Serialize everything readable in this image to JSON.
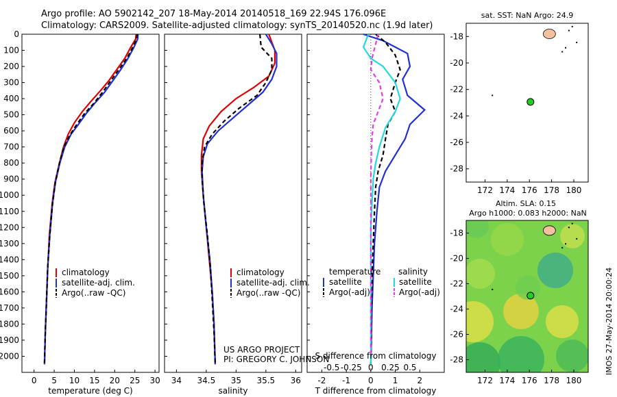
{
  "header": {
    "line1": "Argo profile: AO 5902142_207 18-May-2014 20140518_169 22.94S 176.096E",
    "line2": "Climatology: CARS2009. Satellite-adjusted climatology: synTS_20140520.nc (1.9d later)"
  },
  "credit": {
    "line1": "US ARGO PROJECT",
    "line2": "PI: GREGORY C. JOHNSON"
  },
  "imos_stamp": "IMOS 27-May-2014 20:00:24",
  "colors": {
    "climatology": "#dd0000",
    "satellite": "#1f2fd0",
    "argo": "#000000",
    "sat_salinity": "#22d8e0",
    "argo_salinity": "#e040e0",
    "float_marker": "#22cc22",
    "land": "#f4c0a0"
  },
  "chart_data": [
    {
      "type": "line",
      "id": "temperature",
      "xlabel": "temperature (deg C)",
      "xlim": [
        -3,
        31
      ],
      "ylim": [
        2100,
        0
      ],
      "xticks": [
        0,
        5,
        10,
        15,
        20,
        25,
        30
      ],
      "yticks": [
        0,
        100,
        200,
        300,
        400,
        500,
        600,
        700,
        800,
        900,
        1000,
        1100,
        1200,
        1300,
        1400,
        1500,
        1600,
        1700,
        1800,
        1900,
        2000
      ],
      "legend": [
        "climatology",
        "satellite-adj. clim.",
        "Argo(..raw -QC)"
      ],
      "series": [
        {
          "name": "climatology",
          "color": "#dd0000",
          "points": [
            [
              25.3,
              0
            ],
            [
              25.2,
              30
            ],
            [
              24.0,
              80
            ],
            [
              22.5,
              150
            ],
            [
              20.5,
              220
            ],
            [
              18.5,
              290
            ],
            [
              16.5,
              350
            ],
            [
              14.0,
              420
            ],
            [
              12.0,
              480
            ],
            [
              10.0,
              550
            ],
            [
              8.5,
              620
            ],
            [
              7.3,
              700
            ],
            [
              6.3,
              800
            ],
            [
              5.2,
              920
            ],
            [
              4.5,
              1050
            ],
            [
              3.8,
              1250
            ],
            [
              3.4,
              1450
            ],
            [
              3.1,
              1650
            ],
            [
              2.8,
              1850
            ],
            [
              2.6,
              2050
            ]
          ]
        },
        {
          "name": "satellite-adj. clim.",
          "color": "#1f2fd0",
          "points": [
            [
              25.8,
              0
            ],
            [
              25.7,
              30
            ],
            [
              24.8,
              80
            ],
            [
              23.3,
              150
            ],
            [
              21.5,
              220
            ],
            [
              19.5,
              290
            ],
            [
              17.5,
              360
            ],
            [
              15.0,
              430
            ],
            [
              13.0,
              490
            ],
            [
              11.0,
              560
            ],
            [
              9.2,
              620
            ],
            [
              7.6,
              700
            ],
            [
              6.4,
              800
            ],
            [
              5.3,
              920
            ],
            [
              4.6,
              1050
            ],
            [
              3.9,
              1250
            ],
            [
              3.4,
              1450
            ],
            [
              3.1,
              1650
            ],
            [
              2.8,
              1850
            ],
            [
              2.6,
              2050
            ]
          ]
        },
        {
          "name": "Argo(..raw -QC)",
          "color": "#000000",
          "dashed": true,
          "points": [
            [
              25.6,
              0
            ],
            [
              25.4,
              30
            ],
            [
              24.5,
              80
            ],
            [
              23.0,
              150
            ],
            [
              21.0,
              220
            ],
            [
              19.0,
              290
            ],
            [
              17.0,
              360
            ],
            [
              14.8,
              430
            ],
            [
              12.6,
              490
            ],
            [
              10.6,
              560
            ],
            [
              8.8,
              630
            ],
            [
              7.4,
              700
            ],
            [
              6.3,
              800
            ],
            [
              5.3,
              920
            ],
            [
              4.6,
              1050
            ],
            [
              3.9,
              1250
            ],
            [
              3.4,
              1450
            ],
            [
              3.1,
              1650
            ],
            [
              2.8,
              1850
            ],
            [
              2.6,
              2040
            ]
          ]
        }
      ]
    },
    {
      "type": "line",
      "id": "salinity",
      "xlabel": "salinity",
      "xlim": [
        33.8,
        36.1
      ],
      "ylim": [
        2100,
        0
      ],
      "xticks": [
        34,
        34.5,
        35,
        35.5,
        36
      ],
      "legend": [
        "climatology",
        "satellite-adj. clim.",
        "Argo(..raw -QC)"
      ],
      "series": [
        {
          "name": "climatology",
          "color": "#dd0000",
          "points": [
            [
              35.55,
              0
            ],
            [
              35.6,
              50
            ],
            [
              35.65,
              100
            ],
            [
              35.65,
              180
            ],
            [
              35.55,
              260
            ],
            [
              35.3,
              330
            ],
            [
              35.0,
              400
            ],
            [
              34.75,
              480
            ],
            [
              34.55,
              570
            ],
            [
              34.45,
              650
            ],
            [
              34.42,
              750
            ],
            [
              34.42,
              850
            ],
            [
              34.45,
              1000
            ],
            [
              34.5,
              1200
            ],
            [
              34.55,
              1400
            ],
            [
              34.6,
              1600
            ],
            [
              34.63,
              1800
            ],
            [
              34.65,
              2050
            ]
          ]
        },
        {
          "name": "satellite-adj. clim.",
          "color": "#1f2fd0",
          "points": [
            [
              35.5,
              0
            ],
            [
              35.6,
              60
            ],
            [
              35.68,
              120
            ],
            [
              35.68,
              200
            ],
            [
              35.6,
              280
            ],
            [
              35.45,
              360
            ],
            [
              35.2,
              440
            ],
            [
              34.95,
              520
            ],
            [
              34.7,
              600
            ],
            [
              34.52,
              680
            ],
            [
              34.45,
              760
            ],
            [
              34.43,
              850
            ],
            [
              34.45,
              1000
            ],
            [
              34.5,
              1200
            ],
            [
              34.56,
              1400
            ],
            [
              34.6,
              1600
            ],
            [
              34.63,
              1800
            ],
            [
              34.65,
              2050
            ]
          ]
        },
        {
          "name": "Argo(..raw -QC)",
          "color": "#000000",
          "dashed": true,
          "points": [
            [
              35.4,
              0
            ],
            [
              35.42,
              80
            ],
            [
              35.6,
              150
            ],
            [
              35.6,
              220
            ],
            [
              35.5,
              300
            ],
            [
              35.35,
              380
            ],
            [
              35.05,
              460
            ],
            [
              34.8,
              540
            ],
            [
              34.6,
              620
            ],
            [
              34.47,
              700
            ],
            [
              34.43,
              800
            ],
            [
              34.43,
              900
            ],
            [
              34.46,
              1050
            ],
            [
              34.52,
              1250
            ],
            [
              34.57,
              1450
            ],
            [
              34.6,
              1650
            ],
            [
              34.63,
              1850
            ],
            [
              34.65,
              2040
            ]
          ]
        }
      ]
    },
    {
      "type": "line",
      "id": "differences",
      "xlabel": "T difference from climatology",
      "xlabel_top": "S difference from climatology",
      "xlim": [
        -2.6,
        3.0
      ],
      "ylim": [
        2100,
        0
      ],
      "xticks_T": [
        -2,
        -1,
        0,
        1,
        2
      ],
      "xticks_S": [
        -0.5,
        -0.25,
        0,
        0.25,
        0.5
      ],
      "xticks_S_labels": [
        "-0.5",
        "-0.25",
        "0",
        "0.25",
        "0.5"
      ],
      "legend_temperature_title": "temperature",
      "legend_salinity_title": "salinity",
      "legend_items": [
        "satellite",
        "Argo(-adj)",
        "satellite",
        "Argo(-adj)"
      ],
      "series": [
        {
          "name": "satellite",
          "color": "#1f2fd0",
          "points": [
            [
              -0.3,
              0
            ],
            [
              0.5,
              40
            ],
            [
              1.5,
              120
            ],
            [
              1.6,
              200
            ],
            [
              1.3,
              280
            ],
            [
              1.5,
              380
            ],
            [
              2.2,
              470
            ],
            [
              1.6,
              560
            ],
            [
              1.4,
              650
            ],
            [
              1.0,
              750
            ],
            [
              0.6,
              850
            ],
            [
              0.35,
              950
            ],
            [
              0.25,
              1100
            ],
            [
              0.15,
              1300
            ],
            [
              0.1,
              1500
            ],
            [
              0.05,
              1700
            ],
            [
              0.02,
              1900
            ],
            [
              0.0,
              2050
            ]
          ]
        },
        {
          "name": "Argo(-adj)",
          "color": "#000000",
          "dashed": true,
          "points": [
            [
              0.2,
              0
            ],
            [
              0.6,
              50
            ],
            [
              1.0,
              130
            ],
            [
              1.2,
              220
            ],
            [
              1.0,
              300
            ],
            [
              0.8,
              400
            ],
            [
              1.0,
              480
            ],
            [
              0.7,
              560
            ],
            [
              0.6,
              650
            ],
            [
              0.5,
              750
            ],
            [
              0.3,
              850
            ],
            [
              0.2,
              950
            ],
            [
              0.15,
              1100
            ],
            [
              0.1,
              1300
            ],
            [
              0.05,
              1500
            ],
            [
              0.03,
              1700
            ],
            [
              0.02,
              1900
            ],
            [
              0.0,
              2050
            ]
          ]
        },
        {
          "name": "satellite",
          "color": "#22d8e0",
          "points": [
            [
              -0.1,
              0
            ],
            [
              -0.3,
              80
            ],
            [
              0.0,
              150
            ],
            [
              0.5,
              200
            ],
            [
              1.0,
              300
            ],
            [
              1.2,
              400
            ],
            [
              1.0,
              480
            ],
            [
              0.6,
              580
            ],
            [
              0.35,
              700
            ],
            [
              0.2,
              800
            ],
            [
              0.1,
              900
            ],
            [
              0.05,
              1050
            ],
            [
              0.0,
              1200
            ],
            [
              0.0,
              1400
            ],
            [
              0.0,
              1600
            ],
            [
              0.0,
              1800
            ],
            [
              0.0,
              2050
            ]
          ]
        },
        {
          "name": "Argo(-adj)",
          "color": "#e040e0",
          "dashed": true,
          "points": [
            [
              0.3,
              0
            ],
            [
              0.2,
              60
            ],
            [
              0.05,
              150
            ],
            [
              0.0,
              220
            ],
            [
              0.35,
              300
            ],
            [
              0.5,
              400
            ],
            [
              0.3,
              480
            ],
            [
              0.1,
              560
            ],
            [
              0.05,
              650
            ],
            [
              0.02,
              750
            ],
            [
              0.0,
              900
            ],
            [
              0.0,
              1100
            ],
            [
              0.0,
              1400
            ],
            [
              0.0,
              1700
            ],
            [
              0.0,
              2000
            ]
          ]
        }
      ]
    },
    {
      "type": "map",
      "id": "sst_map",
      "title": "sat. SST: NaN Argo: 24.9",
      "xlim": [
        170.3,
        181.3
      ],
      "ylim": [
        -29,
        -17
      ],
      "xticks": [
        172,
        174,
        176,
        178,
        180
      ],
      "yticks": [
        -18,
        -20,
        -22,
        -24,
        -26,
        -28
      ],
      "float_position": [
        176.096,
        -22.94
      ]
    },
    {
      "type": "heatmap",
      "id": "sla_map",
      "title_line1": "Altim. SLA: 0.15",
      "title_line2": "Argo h1000: 0.083 h2000: NaN",
      "xlim": [
        170.3,
        181.3
      ],
      "ylim": [
        -29,
        -17
      ],
      "xticks": [
        172,
        174,
        176,
        178,
        180
      ],
      "yticks": [
        -18,
        -20,
        -22,
        -24,
        -26,
        -28
      ],
      "float_position": [
        176.096,
        -22.94
      ]
    }
  ]
}
